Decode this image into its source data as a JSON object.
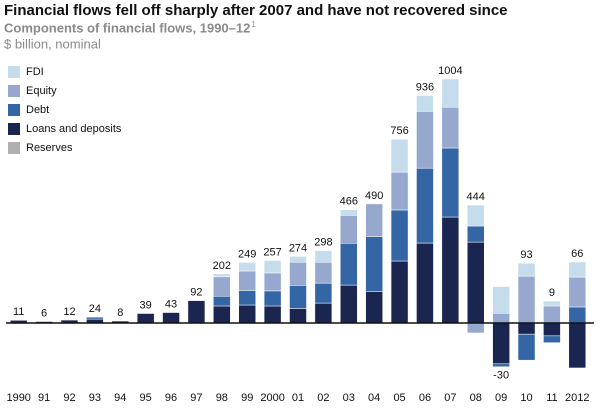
{
  "chart_data": {
    "type": "stacked_bar",
    "title": "Financial flows fell off sharply after 2007 and have not recovered since",
    "subtitle": "Components of financial flows, 1990–12",
    "footnote_marker": "1",
    "unit": "$ billion, nominal",
    "categories": [
      "1990",
      "91",
      "92",
      "93",
      "94",
      "95",
      "96",
      "97",
      "98",
      "99",
      "2000",
      "01",
      "02",
      "03",
      "04",
      "05",
      "06",
      "07",
      "08",
      "09",
      "10",
      "11",
      "2012"
    ],
    "totals": [
      11,
      6,
      12,
      24,
      8,
      39,
      43,
      92,
      202,
      249,
      257,
      274,
      298,
      466,
      490,
      756,
      936,
      1004,
      444,
      -30,
      93,
      9,
      66
    ],
    "series": [
      {
        "name": "FDI",
        "color": "#c5dcec",
        "values": [
          0,
          0,
          0,
          0,
          0,
          0,
          0,
          0,
          12,
          35,
          51,
          24,
          48,
          23,
          0,
          135,
          65,
          116,
          86,
          110,
          53,
          20,
          62
        ]
      },
      {
        "name": "Equity",
        "color": "#97a8cf",
        "values": [
          0,
          0,
          0,
          0,
          0,
          0,
          0,
          0,
          80,
          80,
          74,
          95,
          86,
          115,
          135,
          156,
          234,
          168,
          -41,
          40,
          193,
          70,
          123
        ]
      },
      {
        "name": "Debt",
        "color": "#3465a4",
        "values": [
          0,
          0,
          0,
          8,
          0,
          0,
          0,
          0,
          40,
          60,
          62,
          95,
          82,
          172,
          225,
          210,
          308,
          284,
          66,
          -12,
          -107,
          -28,
          66
        ]
      },
      {
        "name": "Loans and deposits",
        "color": "#1a2550",
        "values": [
          11,
          6,
          12,
          16,
          8,
          39,
          43,
          92,
          70,
          74,
          70,
          60,
          82,
          156,
          130,
          255,
          329,
          436,
          333,
          -168,
          -46,
          -53,
          -185
        ]
      },
      {
        "name": "Reserves",
        "color": "#b0b0b0",
        "values": [
          0,
          0,
          0,
          0,
          0,
          0,
          0,
          0,
          0,
          0,
          0,
          0,
          0,
          0,
          0,
          0,
          0,
          0,
          0,
          0,
          0,
          0,
          0
        ]
      }
    ],
    "ylim": [
      -200,
      1050
    ],
    "legend": "top-left"
  }
}
